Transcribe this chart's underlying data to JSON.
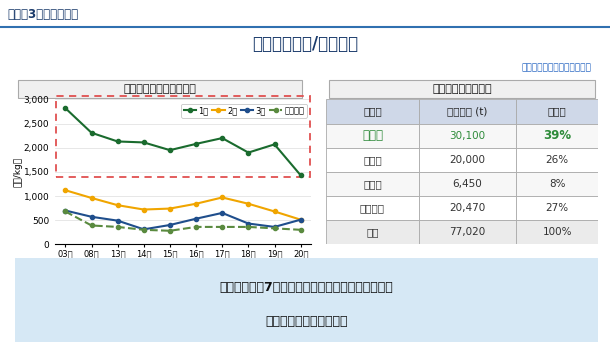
{
  "title": "今後の生産量/単価予測",
  "header_text": "シート3　課題と背景",
  "subtitle_note": "各商社ヒアリングを元に作成",
  "chart_title": "全国　荒茶平均価格推移",
  "table_title": "全国　茶期別生産量",
  "years": [
    "03年",
    "08年",
    "13年",
    "14年",
    "15年",
    "16年",
    "17年",
    "18年",
    "19年",
    "20年"
  ],
  "line1_data": [
    2820,
    2310,
    2130,
    2110,
    1950,
    2080,
    2200,
    1900,
    2070,
    1430
  ],
  "line2_data": [
    1120,
    960,
    810,
    720,
    740,
    840,
    970,
    840,
    680,
    510
  ],
  "line3_data": [
    700,
    570,
    490,
    310,
    400,
    530,
    650,
    430,
    360,
    510
  ],
  "line4_data": [
    680,
    390,
    360,
    300,
    280,
    360,
    360,
    360,
    330,
    300
  ],
  "line1_color": "#1a6b2e",
  "line2_color": "#f0a500",
  "line3_color": "#1f4e8c",
  "line4_color": "#5a8a3f",
  "line1_label": "1茶",
  "line2_label": "2茶",
  "line3_label": "3茶",
  "line4_label": "秋冬番茶",
  "ylim": [
    0,
    3000
  ],
  "yticks": [
    0,
    500,
    1000,
    1500,
    2000,
    2500,
    3000
  ],
  "ylabel": "（円/kg）",
  "table_headers": [
    "茶　期",
    "茶期比率 (t)",
    "構成比"
  ],
  "table_rows": [
    [
      "一番茶",
      "30,100",
      "39%"
    ],
    [
      "二番茶",
      "20,000",
      "26%"
    ],
    [
      "三番茶",
      "6,450",
      "8%"
    ],
    [
      "秋冬番茶",
      "20,470",
      "27%"
    ],
    [
      "合計",
      "77,020",
      "100%"
    ]
  ],
  "highlight_row": 0,
  "highlight_color": "#2e8b3a",
  "bottom_text_line1": "農家の収入の7割を占める一番茶の需要が低迅し、",
  "bottom_text_line2": "茶業の継続ができない。",
  "bg_color": "#ffffff",
  "dotted_box_color": "#e05050",
  "bottom_box_color": "#d6e8f5",
  "header_line_color": "#3070b0",
  "title_color": "#1a3a6b",
  "note_color": "#2060c0"
}
